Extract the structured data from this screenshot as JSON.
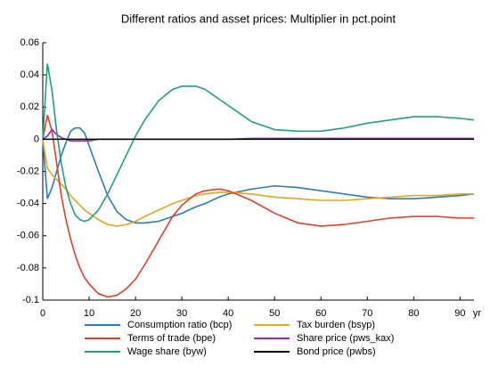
{
  "chart_data": {
    "type": "line",
    "title": "Different ratios and asset prices: Multiplier in pct.point",
    "x_label": "yr",
    "x": [
      0,
      1,
      2,
      3,
      4,
      5,
      6,
      7,
      8,
      9,
      10,
      12,
      14,
      16,
      18,
      20,
      22,
      25,
      28,
      30,
      33,
      35,
      38,
      40,
      45,
      50,
      55,
      60,
      65,
      70,
      75,
      80,
      85,
      90,
      93
    ],
    "xlim": [
      0,
      93
    ],
    "xticks": [
      0,
      10,
      20,
      30,
      40,
      50,
      60,
      70,
      80,
      90
    ],
    "ylim": [
      -0.1,
      0.06
    ],
    "yticks": [
      0.06,
      0.04,
      0.02,
      0,
      -0.02,
      -0.04,
      -0.06,
      -0.08,
      -0.1
    ],
    "grid": false,
    "legend": "bottom",
    "series": [
      {
        "name": "Consumption ratio (bcp)",
        "color": "#2b7bba",
        "values": [
          0,
          -0.037,
          -0.03,
          -0.02,
          -0.01,
          -0.002,
          0.005,
          0.007,
          0.007,
          0.004,
          -0.004,
          -0.02,
          -0.035,
          -0.045,
          -0.05,
          -0.052,
          -0.052,
          -0.051,
          -0.048,
          -0.046,
          -0.042,
          -0.04,
          -0.036,
          -0.034,
          -0.031,
          -0.029,
          -0.03,
          -0.032,
          -0.034,
          -0.036,
          -0.037,
          -0.037,
          -0.036,
          -0.035,
          -0.034
        ]
      },
      {
        "name": "Tax burden (bsyp)",
        "color": "#e6a619",
        "values": [
          0,
          -0.018,
          -0.022,
          -0.025,
          -0.028,
          -0.031,
          -0.035,
          -0.038,
          -0.041,
          -0.044,
          -0.046,
          -0.05,
          -0.053,
          -0.054,
          -0.053,
          -0.051,
          -0.048,
          -0.044,
          -0.04,
          -0.038,
          -0.035,
          -0.034,
          -0.033,
          -0.033,
          -0.034,
          -0.036,
          -0.037,
          -0.038,
          -0.038,
          -0.037,
          -0.036,
          -0.035,
          -0.035,
          -0.034,
          -0.034
        ]
      },
      {
        "name": "Terms of trade (bpe)",
        "color": "#e0402a",
        "values": [
          0,
          0.015,
          0.005,
          -0.015,
          -0.035,
          -0.05,
          -0.062,
          -0.072,
          -0.08,
          -0.086,
          -0.09,
          -0.096,
          -0.098,
          -0.097,
          -0.093,
          -0.087,
          -0.078,
          -0.063,
          -0.048,
          -0.041,
          -0.034,
          -0.032,
          -0.031,
          -0.032,
          -0.038,
          -0.046,
          -0.052,
          -0.054,
          -0.053,
          -0.051,
          -0.049,
          -0.048,
          -0.048,
          -0.049,
          -0.049
        ]
      },
      {
        "name": "Share price (pws_kax)",
        "color": "#a024c0",
        "values": [
          0,
          0.002,
          0.006,
          0.003,
          0.001,
          0,
          -0.001,
          -0.001,
          -0.001,
          -0.001,
          -0.001,
          0,
          0,
          0,
          0,
          0,
          0,
          0,
          0,
          0,
          0,
          0,
          0,
          0,
          0.0005,
          0.0005,
          0.0005,
          0.0005,
          0.0005,
          0.0005,
          0.0005,
          0.0005,
          0.0005,
          0.0005,
          0.0005
        ]
      },
      {
        "name": "Wage share (byw)",
        "color": "#22a07e",
        "values": [
          0,
          0.047,
          0.03,
          0.005,
          -0.015,
          -0.03,
          -0.04,
          -0.047,
          -0.05,
          -0.051,
          -0.05,
          -0.044,
          -0.034,
          -0.022,
          -0.01,
          0.002,
          0.012,
          0.024,
          0.031,
          0.033,
          0.033,
          0.031,
          0.025,
          0.021,
          0.011,
          0.006,
          0.005,
          0.005,
          0.007,
          0.01,
          0.012,
          0.014,
          0.014,
          0.013,
          0.012
        ]
      },
      {
        "name": "Bond price (pwbs)",
        "color": "#000000",
        "values": [
          0,
          0,
          0,
          0,
          0,
          0,
          0,
          0,
          0,
          0,
          0,
          0,
          0,
          0,
          0,
          0,
          0,
          0,
          0,
          0,
          0,
          0,
          0,
          0,
          0,
          0,
          0,
          0,
          0,
          0,
          0,
          0,
          0,
          0,
          0
        ]
      }
    ]
  }
}
